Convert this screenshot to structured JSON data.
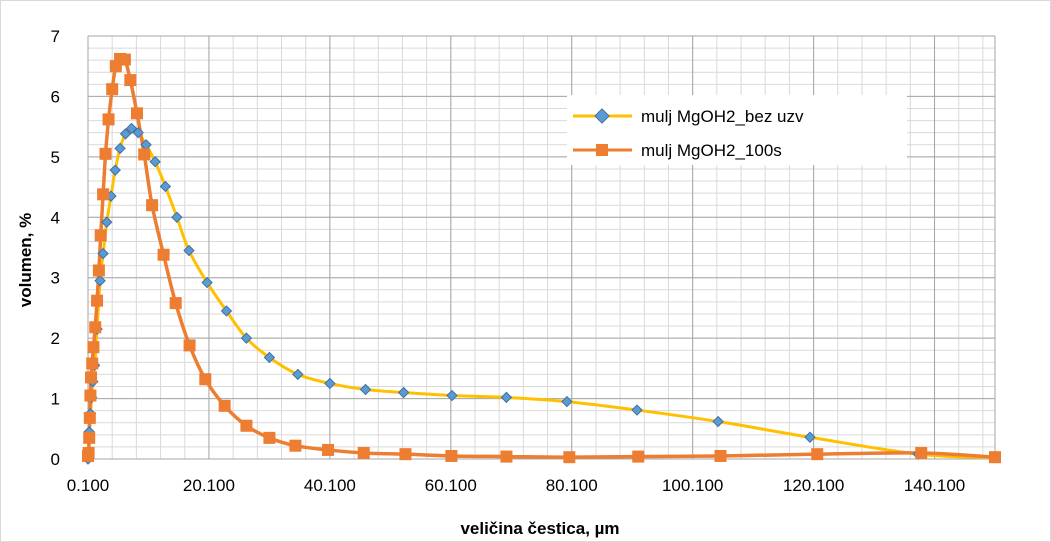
{
  "chart_data": {
    "type": "line",
    "xlabel": "veličina čestica, µm",
    "ylabel": "volumen, %",
    "xlim": [
      0.1,
      150.1
    ],
    "ylim": [
      0,
      7
    ],
    "x_ticks": [
      0.1,
      20.1,
      40.1,
      60.1,
      80.1,
      100.1,
      120.1,
      140.1
    ],
    "x_tick_labels": [
      "0.100",
      "20.100",
      "40.100",
      "60.100",
      "80.100",
      "100.100",
      "120.100",
      "140.100"
    ],
    "y_ticks": [
      0,
      1,
      2,
      3,
      4,
      5,
      6,
      7
    ],
    "y_tick_labels": [
      "0",
      "1",
      "2",
      "3",
      "4",
      "5",
      "6",
      "7"
    ],
    "grid": true,
    "legend_position": "top-right",
    "colors": {
      "series1_line": "#FFC000",
      "series1_marker": "#5B9BD5",
      "series2": "#ED7D31",
      "grid_major": "#A6A6A6",
      "grid_minor": "#D9D9D9"
    },
    "series": [
      {
        "name": "mulj MgOH2_bez uzv",
        "marker": "diamond",
        "x": [
          0.1,
          0.3,
          0.5,
          0.7,
          0.9,
          1.2,
          1.6,
          2.1,
          2.6,
          3.2,
          3.9,
          4.6,
          5.4,
          6.3,
          7.3,
          8.4,
          9.7,
          11.2,
          12.9,
          14.8,
          16.8,
          19.8,
          23.0,
          26.3,
          30.1,
          34.8,
          40.1,
          46.0,
          52.3,
          60.3,
          69.3,
          79.3,
          90.9,
          104.3,
          119.5,
          137.4,
          150.1
        ],
        "y": [
          0.0,
          0.45,
          0.75,
          1.02,
          1.28,
          1.55,
          2.15,
          2.95,
          3.4,
          3.92,
          4.35,
          4.78,
          5.14,
          5.38,
          5.47,
          5.4,
          5.2,
          4.92,
          4.51,
          4.0,
          3.45,
          2.92,
          2.45,
          2.0,
          1.68,
          1.4,
          1.25,
          1.15,
          1.1,
          1.05,
          1.02,
          0.95,
          0.81,
          0.62,
          0.36,
          0.08,
          0.02
        ]
      },
      {
        "name": "mulj MgOH2_100s",
        "marker": "square",
        "x": [
          0.1,
          0.2,
          0.3,
          0.4,
          0.5,
          0.6,
          0.8,
          1.0,
          1.3,
          1.6,
          1.9,
          2.2,
          2.6,
          3.0,
          3.5,
          4.1,
          4.7,
          5.4,
          6.2,
          7.1,
          8.2,
          9.4,
          10.7,
          12.6,
          14.6,
          16.9,
          19.5,
          22.7,
          26.3,
          30.1,
          34.4,
          39.8,
          45.7,
          52.6,
          60.2,
          69.3,
          79.7,
          91.1,
          104.7,
          120.7,
          137.9,
          150.1
        ],
        "y": [
          0.05,
          0.1,
          0.35,
          0.68,
          1.05,
          1.35,
          1.58,
          1.85,
          2.18,
          2.62,
          3.12,
          3.7,
          4.38,
          5.05,
          5.62,
          6.12,
          6.5,
          6.62,
          6.61,
          6.27,
          5.72,
          5.04,
          4.2,
          3.38,
          2.58,
          1.88,
          1.32,
          0.88,
          0.55,
          0.35,
          0.22,
          0.15,
          0.1,
          0.08,
          0.05,
          0.04,
          0.03,
          0.04,
          0.05,
          0.08,
          0.1,
          0.03
        ]
      }
    ]
  }
}
